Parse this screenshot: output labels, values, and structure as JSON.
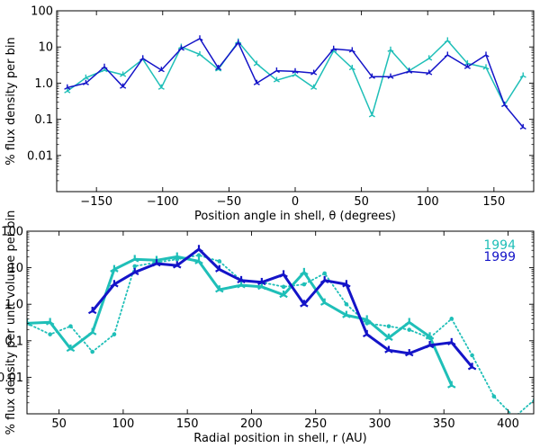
{
  "colors": {
    "cyan": "#1fbfb8",
    "blue": "#1414c8",
    "axes": "#000000"
  },
  "chart_data": [
    {
      "type": "line",
      "yscale": "log",
      "xlim": [
        -180,
        180
      ],
      "ylim": [
        0.001,
        100
      ],
      "xticks": [
        -150,
        -100,
        -50,
        0,
        50,
        100,
        150
      ],
      "xtick_labels": [
        "−150",
        "−100",
        "−50",
        "0",
        "50",
        "100",
        "150"
      ],
      "yticks": [
        0.01,
        0.1,
        1.0,
        10,
        100
      ],
      "ytick_labels": [
        "0.01",
        "0.1",
        "1.0",
        "10",
        "100"
      ],
      "xlabel": "Position angle in shell, θ (degrees)",
      "ylabel": "% flux density per bin",
      "series": [
        {
          "name": "1994",
          "color_key": "cyan",
          "x": [
            -172,
            -158,
            -144,
            -130,
            -115,
            -101,
            -86,
            -72,
            -58,
            -43,
            -29,
            -14,
            0,
            14,
            29,
            43,
            58,
            72,
            86,
            101,
            115,
            130,
            144,
            158,
            172
          ],
          "y": [
            0.6,
            1.4,
            2.3,
            1.7,
            4.6,
            0.75,
            10,
            6.2,
            2.4,
            14,
            3.4,
            1.2,
            1.7,
            0.75,
            7.8,
            2.6,
            0.13,
            8.3,
            2.2,
            4.8,
            15,
            3.5,
            2.7,
            0.25,
            1.6
          ]
        },
        {
          "name": "1999",
          "color_key": "blue",
          "x": [
            -172,
            -158,
            -144,
            -130,
            -115,
            -101,
            -86,
            -72,
            -58,
            -43,
            -29,
            -14,
            0,
            14,
            29,
            43,
            58,
            72,
            86,
            101,
            115,
            130,
            144,
            158,
            172
          ],
          "y": [
            0.75,
            1.0,
            2.8,
            0.8,
            4.8,
            2.3,
            9.0,
            17,
            2.6,
            13,
            1.0,
            2.2,
            2.1,
            1.9,
            8.8,
            8.0,
            1.5,
            1.5,
            2.1,
            1.9,
            6.0,
            2.8,
            6.0,
            0.25,
            0.06
          ]
        }
      ]
    },
    {
      "type": "line",
      "yscale": "log",
      "xlim": [
        25,
        420
      ],
      "ylim": [
        0.001,
        100
      ],
      "xticks": [
        50,
        100,
        150,
        200,
        250,
        300,
        350,
        400
      ],
      "xtick_labels": [
        "50",
        "100",
        "150",
        "200",
        "250",
        "300",
        "350",
        "400"
      ],
      "yticks": [
        0.01,
        0.1,
        1.0,
        10,
        100
      ],
      "ytick_labels": [
        "0.01",
        "0.1",
        "1.0",
        "10",
        "100"
      ],
      "xlabel": "Radial position in shell, r (AU)",
      "ylabel": "% flux density per unit volume per bin",
      "legend": {
        "placement": "top-right",
        "entries": [
          "1994",
          "1999"
        ]
      },
      "series": [
        {
          "name": "1994",
          "style": "solid",
          "color_key": "cyan",
          "x": [
            25,
            43,
            59,
            76,
            93,
            109,
            126,
            142,
            159,
            175,
            192,
            208,
            225,
            241,
            257,
            274,
            290,
            307,
            323,
            339,
            356
          ],
          "y": [
            0.3,
            0.32,
            0.06,
            0.17,
            9,
            17,
            16,
            20,
            15,
            2.5,
            3.3,
            3.0,
            1.8,
            7.5,
            1.1,
            0.5,
            0.38,
            0.12,
            0.32,
            0.13,
            0.006
          ]
        },
        {
          "name": "1994 (dotted)",
          "style": "dotted",
          "color_key": "cyan",
          "x": [
            25,
            43,
            59,
            76,
            93,
            109,
            126,
            142,
            159,
            175,
            192,
            208,
            225,
            241,
            257,
            274,
            290,
            307,
            323,
            339,
            356,
            372,
            389,
            405,
            421
          ],
          "y": [
            0.3,
            0.15,
            0.25,
            0.05,
            0.15,
            11,
            14,
            17,
            22,
            15,
            4.5,
            4.0,
            3.0,
            3.5,
            7.0,
            1.0,
            0.3,
            0.25,
            0.2,
            0.12,
            0.4,
            0.04,
            0.003,
            0.0008,
            0.0025
          ]
        },
        {
          "name": "1999",
          "style": "solid",
          "color_key": "blue",
          "x": [
            76,
            93,
            109,
            126,
            142,
            159,
            175,
            192,
            208,
            225,
            241,
            257,
            274,
            290,
            307,
            323,
            339,
            356,
            372
          ],
          "y": [
            0.65,
            3.5,
            7.5,
            13,
            11.5,
            32,
            9,
            4.5,
            4.0,
            6.5,
            1.0,
            4.5,
            3.5,
            0.15,
            0.055,
            0.045,
            0.075,
            0.09,
            0.019
          ]
        }
      ]
    }
  ]
}
